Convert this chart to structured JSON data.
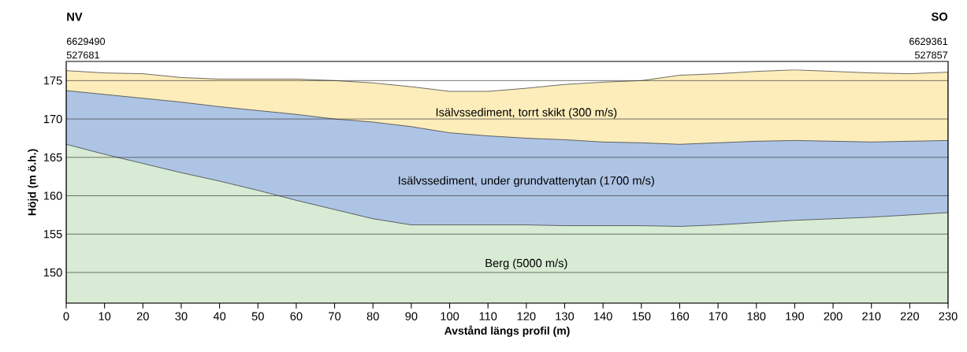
{
  "chart_data": {
    "type": "area",
    "xlabel": "Avstånd längs profil (m)",
    "ylabel": "Höjd (m ö.h.)",
    "x": [
      0,
      10,
      20,
      30,
      40,
      50,
      60,
      70,
      80,
      90,
      100,
      110,
      120,
      130,
      140,
      150,
      160,
      170,
      180,
      190,
      200,
      210,
      220,
      230
    ],
    "series": [
      {
        "name": "Isälvssediment, torrt skikt (300 m/s)",
        "color": "#fdedbb",
        "values": [
          176.3,
          176.0,
          175.9,
          175.4,
          175.2,
          175.2,
          175.2,
          175.0,
          174.7,
          174.2,
          173.6,
          173.6,
          174.0,
          174.5,
          174.8,
          175.0,
          175.7,
          175.9,
          176.2,
          176.4,
          176.2,
          176.0,
          175.9,
          176.1
        ]
      },
      {
        "name": "Isälvssediment, under grundvattenytan (1700 m/s)",
        "color": "#aec4e5",
        "values": [
          173.7,
          173.2,
          172.7,
          172.2,
          171.6,
          171.1,
          170.6,
          170.0,
          169.6,
          169.0,
          168.2,
          167.8,
          167.5,
          167.3,
          167.0,
          166.9,
          166.7,
          166.9,
          167.1,
          167.2,
          167.1,
          167.0,
          167.1,
          167.2
        ]
      },
      {
        "name": "Berg (5000 m/s)",
        "color": "#d8ebd4",
        "values": [
          166.7,
          165.4,
          164.2,
          163.0,
          161.9,
          160.7,
          159.4,
          158.2,
          157.0,
          156.2,
          156.2,
          156.2,
          156.2,
          156.1,
          156.1,
          156.1,
          156.0,
          156.2,
          156.5,
          156.8,
          157.0,
          157.2,
          157.5,
          157.8
        ]
      }
    ],
    "xlim": [
      0,
      230
    ],
    "xticks": [
      0,
      10,
      20,
      30,
      40,
      50,
      60,
      70,
      80,
      90,
      100,
      110,
      120,
      130,
      140,
      150,
      160,
      170,
      180,
      190,
      200,
      210,
      220,
      230
    ],
    "ylim": [
      146,
      177.5
    ],
    "yticks": [
      150,
      155,
      160,
      165,
      170,
      175
    ],
    "grid": "y",
    "annotations": [
      "NV",
      "6629490",
      "527681",
      "SO",
      "6629361",
      "527857"
    ]
  }
}
